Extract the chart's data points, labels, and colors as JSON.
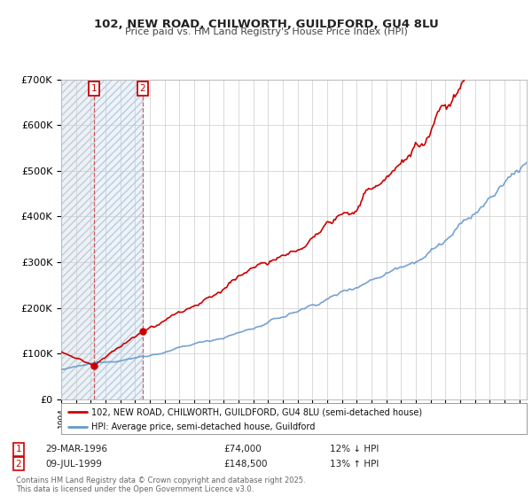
{
  "title_line1": "102, NEW ROAD, CHILWORTH, GUILDFORD, GU4 8LU",
  "title_line2": "Price paid vs. HM Land Registry's House Price Index (HPI)",
  "property_label": "102, NEW ROAD, CHILWORTH, GUILDFORD, GU4 8LU (semi-detached house)",
  "hpi_label": "HPI: Average price, semi-detached house, Guildford",
  "property_color": "#cc0000",
  "hpi_color": "#6699cc",
  "annotation1_date": "29-MAR-1996",
  "annotation1_price": "£74,000",
  "annotation1_hpi": "12% ↓ HPI",
  "annotation2_date": "09-JUL-1999",
  "annotation2_price": "£148,500",
  "annotation2_hpi": "13% ↑ HPI",
  "footer": "Contains HM Land Registry data © Crown copyright and database right 2025.\nThis data is licensed under the Open Government Licence v3.0.",
  "ylim": [
    0,
    700000
  ],
  "yticks": [
    0,
    100000,
    200000,
    300000,
    400000,
    500000,
    600000,
    700000
  ],
  "ytick_labels": [
    "£0",
    "£100K",
    "£200K",
    "£300K",
    "£400K",
    "£500K",
    "£600K",
    "£700K"
  ],
  "purchase1_x": 1996.23,
  "purchase1_y": 74000,
  "purchase2_x": 1999.52,
  "purchase2_y": 148500,
  "xmin": 1994.0,
  "xmax": 2025.5,
  "background_color": "#ffffff",
  "shade_color": "#dce9f5"
}
